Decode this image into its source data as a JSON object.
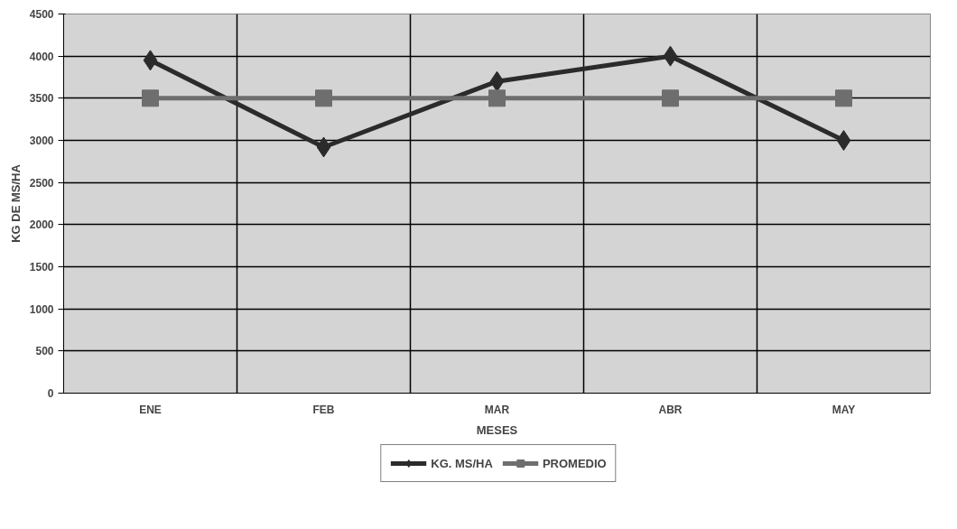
{
  "chart_data": {
    "type": "line",
    "xlabel": "MESES",
    "ylabel": "KG DE MS/HA",
    "categories": [
      "ENE",
      "FEB",
      "MAR",
      "ABR",
      "MAY"
    ],
    "series": [
      {
        "name": "KG. MS/HA",
        "color": "#2b2b2b",
        "values": [
          3950,
          2920,
          3700,
          4000,
          3000
        ],
        "marker": "diamond"
      },
      {
        "name": "PROMEDIO",
        "color": "#6e6e6e",
        "values": [
          3500,
          3500,
          3500,
          3500,
          3500
        ],
        "marker": "square"
      }
    ],
    "ylim": [
      0,
      4500
    ],
    "yticks": [
      0,
      500,
      1000,
      1500,
      2000,
      2500,
      3000,
      3500,
      4000,
      4500
    ],
    "grid": true,
    "legend": "bottom",
    "line_style": "solid"
  }
}
